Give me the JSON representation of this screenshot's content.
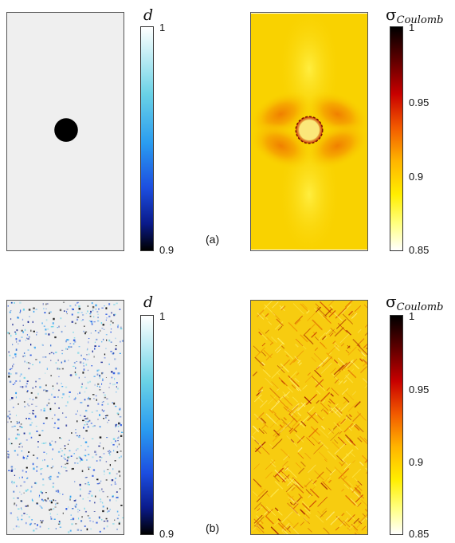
{
  "figure": {
    "rows": [
      {
        "label": "(a)",
        "damage_colorbar": {
          "symbol": "d",
          "ticks": [
            "1",
            "0.9"
          ]
        },
        "stress_colorbar": {
          "symbol": "σ",
          "subscript": "Coulomb",
          "ticks": [
            "1",
            "0.95",
            "0.9",
            "0.85"
          ]
        }
      },
      {
        "label": "(b)",
        "damage_colorbar": {
          "symbol": "d",
          "ticks": [
            "1",
            "0.9"
          ]
        },
        "stress_colorbar": {
          "symbol": "σ",
          "subscript": "Coulomb",
          "ticks": [
            "1",
            "0.95",
            "0.9",
            "0.85"
          ]
        }
      }
    ]
  },
  "colors": {
    "damage_background": "#eeeeee",
    "stress_background": "#f9d200",
    "hole": "#000000"
  }
}
